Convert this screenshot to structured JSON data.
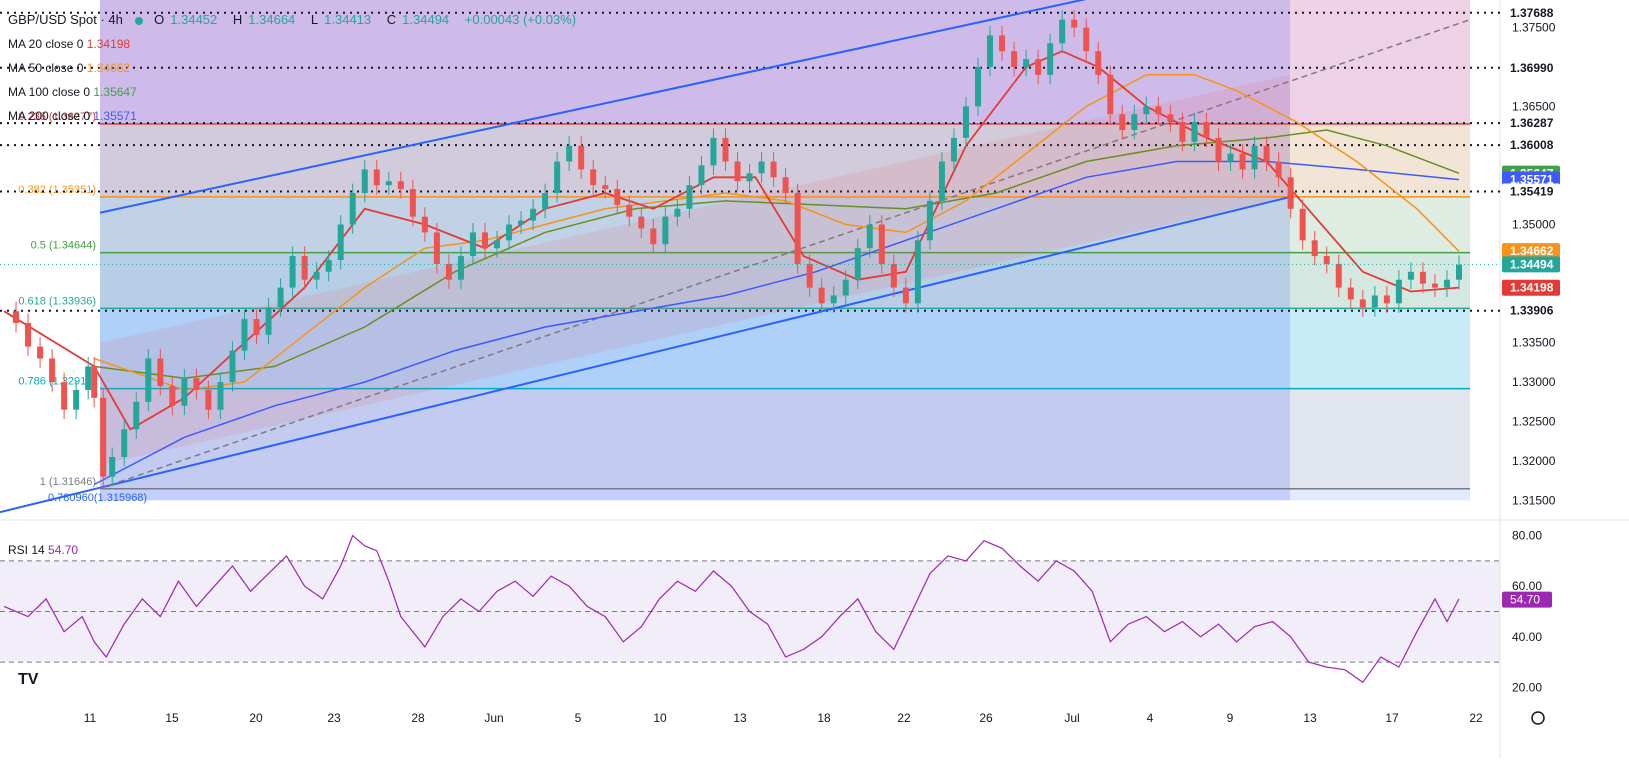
{
  "header": {
    "symbol": "GBP/USD Spot · 4h",
    "ohlc": [
      {
        "key": "O",
        "value": "1.34452"
      },
      {
        "key": "H",
        "value": "1.34664"
      },
      {
        "key": "L",
        "value": "1.34413"
      },
      {
        "key": "C",
        "value": "1.34494"
      }
    ],
    "change": "+0.00043 (+0.03%)"
  },
  "indicators": [
    {
      "label": "MA 20 close 0",
      "value": "1.34198",
      "color": "#e53935"
    },
    {
      "label": "MA 50 close 0",
      "value": "1.34662",
      "color": "#f7931a"
    },
    {
      "label": "MA 100 close 0",
      "value": "1.35647",
      "color": "#6b8e23"
    },
    {
      "label": "MA 200 close 0",
      "value": "1.35571",
      "color": "#3d5afe"
    }
  ],
  "rsi": {
    "label": "RSI 14",
    "value": "54.70",
    "color": "#9c27b0",
    "value_num": 54.7
  },
  "colors": {
    "up": "#26a69a",
    "down": "#ef5350",
    "ma20": "#e53935",
    "ma50": "#f7931a",
    "ma100": "#6b8e23",
    "ma200": "#3d5afe",
    "channel": "#2962ff",
    "rsi": "#9c27b0"
  },
  "chart_data": {
    "type": "line",
    "price_axis": {
      "ylim": [
        1.3125,
        1.3785
      ],
      "ticks": [
        "1.37500",
        "1.36500",
        "1.35000",
        "1.33500",
        "1.33000",
        "1.32500",
        "1.32000",
        "1.31500"
      ]
    },
    "time_axis": {
      "labels": [
        "11",
        "15",
        "20",
        "23",
        "28",
        "Jun",
        "5",
        "10",
        "13",
        "18",
        "22",
        "26",
        "Jul",
        "4",
        "9",
        "13",
        "17",
        "22"
      ]
    },
    "horizontal_levels": [
      "1.37688",
      "1.36990",
      "1.36287",
      "1.36008",
      "1.35419",
      "1.33906"
    ],
    "fibonacci": [
      {
        "label": "0.236 (1.36277)",
        "level": 1.36277
      },
      {
        "label": "0.382 (1.35351)",
        "level": 1.35351
      },
      {
        "label": "0.5 (1.34644)",
        "level": 1.34644
      },
      {
        "label": "0.618 (1.33936)",
        "level": 1.33936
      },
      {
        "label": "0.786 (1.32917)",
        "level": 1.32917
      },
      {
        "label": "1 (1.31646)",
        "level": 1.31646
      }
    ],
    "fib_extra_label": "0.780960(1.315968)",
    "price_badges": [
      {
        "value": "1.34662",
        "level": 1.34662,
        "color": "#f7931a"
      },
      {
        "value": "1.34494",
        "level": 1.34494,
        "color": "#26a69a"
      },
      {
        "value": "1.34198",
        "level": 1.34198,
        "color": "#e53935"
      },
      {
        "value": "1.33906",
        "level": 1.33906,
        "color": "#131722"
      },
      {
        "value": "1.35647",
        "level": 1.35647,
        "color": "#43a047"
      },
      {
        "value": "1.35571",
        "level": 1.35571,
        "color": "#3d5afe"
      },
      {
        "value": "1.35419",
        "level": 1.35419,
        "color": "#131722"
      },
      {
        "value": "1.36008",
        "level": 1.36008,
        "color": "#131722"
      },
      {
        "value": "1.36287",
        "level": 1.36287,
        "color": "#131722"
      },
      {
        "value": "1.36990",
        "level": 1.3699,
        "color": "#131722"
      },
      {
        "value": "1.37688",
        "level": 1.37688,
        "color": "#131722"
      }
    ],
    "price_path": [
      [
        0,
        1.339
      ],
      [
        4,
        1.3375
      ],
      [
        8,
        1.3345
      ],
      [
        12,
        1.333
      ],
      [
        16,
        1.33
      ],
      [
        20,
        1.3265
      ],
      [
        24,
        1.329
      ],
      [
        28,
        1.332
      ],
      [
        30,
        1.328
      ],
      [
        33,
        1.318
      ],
      [
        36,
        1.3205
      ],
      [
        40,
        1.324
      ],
      [
        44,
        1.3275
      ],
      [
        48,
        1.333
      ],
      [
        52,
        1.3295
      ],
      [
        56,
        1.327
      ],
      [
        60,
        1.3305
      ],
      [
        64,
        1.329
      ],
      [
        68,
        1.3265
      ],
      [
        72,
        1.33
      ],
      [
        76,
        1.334
      ],
      [
        80,
        1.338
      ],
      [
        84,
        1.336
      ],
      [
        88,
        1.3395
      ],
      [
        92,
        1.342
      ],
      [
        96,
        1.346
      ],
      [
        100,
        1.343
      ],
      [
        104,
        1.344
      ],
      [
        108,
        1.3455
      ],
      [
        112,
        1.35
      ],
      [
        116,
        1.354
      ],
      [
        120,
        1.357
      ],
      [
        124,
        1.355
      ],
      [
        128,
        1.3555
      ],
      [
        132,
        1.3545
      ],
      [
        136,
        1.351
      ],
      [
        140,
        1.349
      ],
      [
        144,
        1.345
      ],
      [
        148,
        1.343
      ],
      [
        152,
        1.346
      ],
      [
        156,
        1.349
      ],
      [
        160,
        1.347
      ],
      [
        164,
        1.348
      ],
      [
        168,
        1.35
      ],
      [
        172,
        1.3505
      ],
      [
        176,
        1.352
      ],
      [
        180,
        1.354
      ],
      [
        184,
        1.358
      ],
      [
        188,
        1.36
      ],
      [
        192,
        1.357
      ],
      [
        196,
        1.355
      ],
      [
        200,
        1.3545
      ],
      [
        204,
        1.3525
      ],
      [
        208,
        1.351
      ],
      [
        212,
        1.3495
      ],
      [
        216,
        1.3475
      ],
      [
        220,
        1.351
      ],
      [
        224,
        1.352
      ],
      [
        228,
        1.355
      ],
      [
        232,
        1.3575
      ],
      [
        236,
        1.361
      ],
      [
        240,
        1.358
      ],
      [
        244,
        1.3555
      ],
      [
        248,
        1.3565
      ],
      [
        252,
        1.358
      ],
      [
        256,
        1.356
      ],
      [
        260,
        1.354
      ],
      [
        264,
        1.345
      ],
      [
        268,
        1.342
      ],
      [
        272,
        1.34
      ],
      [
        276,
        1.341
      ],
      [
        280,
        1.343
      ],
      [
        284,
        1.347
      ],
      [
        288,
        1.35
      ],
      [
        292,
        1.345
      ],
      [
        296,
        1.342
      ],
      [
        300,
        1.34
      ],
      [
        304,
        1.348
      ],
      [
        308,
        1.353
      ],
      [
        312,
        1.358
      ],
      [
        316,
        1.361
      ],
      [
        320,
        1.365
      ],
      [
        324,
        1.37
      ],
      [
        328,
        1.374
      ],
      [
        332,
        1.372
      ],
      [
        336,
        1.37
      ],
      [
        340,
        1.371
      ],
      [
        344,
        1.369
      ],
      [
        348,
        1.373
      ],
      [
        352,
        1.376
      ],
      [
        356,
        1.375
      ],
      [
        360,
        1.372
      ],
      [
        364,
        1.369
      ],
      [
        368,
        1.364
      ],
      [
        372,
        1.362
      ],
      [
        376,
        1.364
      ],
      [
        380,
        1.365
      ],
      [
        384,
        1.364
      ],
      [
        388,
        1.363
      ],
      [
        392,
        1.3605
      ],
      [
        396,
        1.363
      ],
      [
        400,
        1.361
      ],
      [
        404,
        1.358
      ],
      [
        408,
        1.359
      ],
      [
        412,
        1.357
      ],
      [
        416,
        1.36
      ],
      [
        420,
        1.358
      ],
      [
        424,
        1.356
      ],
      [
        428,
        1.352
      ],
      [
        432,
        1.348
      ],
      [
        436,
        1.346
      ],
      [
        440,
        1.345
      ],
      [
        444,
        1.342
      ],
      [
        448,
        1.3405
      ],
      [
        452,
        1.3395
      ],
      [
        456,
        1.341
      ],
      [
        460,
        1.34
      ],
      [
        464,
        1.343
      ],
      [
        468,
        1.344
      ],
      [
        472,
        1.3425
      ],
      [
        476,
        1.342
      ],
      [
        480,
        1.343
      ],
      [
        484,
        1.3449
      ]
    ],
    "ma20": [
      [
        0,
        1.339
      ],
      [
        30,
        1.332
      ],
      [
        42,
        1.324
      ],
      [
        60,
        1.328
      ],
      [
        80,
        1.335
      ],
      [
        100,
        1.342
      ],
      [
        120,
        1.352
      ],
      [
        140,
        1.35
      ],
      [
        160,
        1.347
      ],
      [
        180,
        1.352
      ],
      [
        200,
        1.354
      ],
      [
        216,
        1.352
      ],
      [
        236,
        1.356
      ],
      [
        250,
        1.356
      ],
      [
        266,
        1.346
      ],
      [
        284,
        1.343
      ],
      [
        300,
        1.344
      ],
      [
        320,
        1.36
      ],
      [
        340,
        1.37
      ],
      [
        352,
        1.372
      ],
      [
        364,
        1.37
      ],
      [
        380,
        1.365
      ],
      [
        400,
        1.361
      ],
      [
        420,
        1.358
      ],
      [
        436,
        1.351
      ],
      [
        452,
        1.344
      ],
      [
        468,
        1.3415
      ],
      [
        484,
        1.342
      ]
    ],
    "ma50": [
      [
        30,
        1.333
      ],
      [
        60,
        1.329
      ],
      [
        80,
        1.33
      ],
      [
        100,
        1.336
      ],
      [
        120,
        1.342
      ],
      [
        140,
        1.347
      ],
      [
        160,
        1.348
      ],
      [
        180,
        1.35
      ],
      [
        200,
        1.352
      ],
      [
        220,
        1.353
      ],
      [
        240,
        1.354
      ],
      [
        260,
        1.353
      ],
      [
        280,
        1.35
      ],
      [
        300,
        1.349
      ],
      [
        320,
        1.353
      ],
      [
        340,
        1.359
      ],
      [
        360,
        1.365
      ],
      [
        380,
        1.369
      ],
      [
        396,
        1.369
      ],
      [
        410,
        1.367
      ],
      [
        430,
        1.363
      ],
      [
        450,
        1.358
      ],
      [
        470,
        1.352
      ],
      [
        484,
        1.3466
      ]
    ],
    "ma100": [
      [
        30,
        1.332
      ],
      [
        60,
        1.3305
      ],
      [
        90,
        1.332
      ],
      [
        120,
        1.337
      ],
      [
        150,
        1.344
      ],
      [
        180,
        1.349
      ],
      [
        210,
        1.352
      ],
      [
        240,
        1.353
      ],
      [
        270,
        1.3525
      ],
      [
        300,
        1.352
      ],
      [
        330,
        1.354
      ],
      [
        360,
        1.358
      ],
      [
        390,
        1.36
      ],
      [
        420,
        1.361
      ],
      [
        440,
        1.362
      ],
      [
        460,
        1.36
      ],
      [
        484,
        1.3565
      ]
    ],
    "ma200": [
      [
        30,
        1.317
      ],
      [
        60,
        1.323
      ],
      [
        90,
        1.327
      ],
      [
        120,
        1.33
      ],
      [
        150,
        1.334
      ],
      [
        180,
        1.337
      ],
      [
        210,
        1.339
      ],
      [
        240,
        1.341
      ],
      [
        270,
        1.344
      ],
      [
        300,
        1.348
      ],
      [
        330,
        1.352
      ],
      [
        360,
        1.356
      ],
      [
        390,
        1.358
      ],
      [
        420,
        1.358
      ],
      [
        450,
        1.357
      ],
      [
        484,
        1.3557
      ]
    ],
    "rsi_axis": {
      "ylim": [
        15,
        85
      ],
      "ticks": [
        "80.00",
        "60.00",
        "40.00",
        "20.00"
      ],
      "bands": [
        70,
        50,
        30
      ]
    },
    "rsi_path": [
      [
        0,
        52
      ],
      [
        8,
        48
      ],
      [
        14,
        55
      ],
      [
        20,
        42
      ],
      [
        26,
        48
      ],
      [
        30,
        38
      ],
      [
        34,
        32
      ],
      [
        40,
        45
      ],
      [
        46,
        55
      ],
      [
        52,
        48
      ],
      [
        58,
        62
      ],
      [
        64,
        52
      ],
      [
        70,
        60
      ],
      [
        76,
        68
      ],
      [
        82,
        58
      ],
      [
        88,
        65
      ],
      [
        94,
        72
      ],
      [
        100,
        60
      ],
      [
        106,
        55
      ],
      [
        112,
        68
      ],
      [
        116,
        80
      ],
      [
        120,
        76
      ],
      [
        124,
        74
      ],
      [
        128,
        62
      ],
      [
        132,
        48
      ],
      [
        136,
        42
      ],
      [
        140,
        36
      ],
      [
        146,
        48
      ],
      [
        152,
        55
      ],
      [
        158,
        50
      ],
      [
        164,
        58
      ],
      [
        170,
        62
      ],
      [
        176,
        56
      ],
      [
        182,
        64
      ],
      [
        188,
        60
      ],
      [
        194,
        52
      ],
      [
        200,
        48
      ],
      [
        206,
        38
      ],
      [
        212,
        44
      ],
      [
        218,
        55
      ],
      [
        224,
        62
      ],
      [
        230,
        58
      ],
      [
        236,
        66
      ],
      [
        242,
        60
      ],
      [
        248,
        50
      ],
      [
        254,
        45
      ],
      [
        260,
        32
      ],
      [
        266,
        35
      ],
      [
        272,
        40
      ],
      [
        278,
        48
      ],
      [
        284,
        55
      ],
      [
        290,
        42
      ],
      [
        296,
        35
      ],
      [
        302,
        50
      ],
      [
        308,
        65
      ],
      [
        314,
        72
      ],
      [
        320,
        70
      ],
      [
        326,
        78
      ],
      [
        332,
        75
      ],
      [
        338,
        68
      ],
      [
        344,
        62
      ],
      [
        350,
        70
      ],
      [
        356,
        66
      ],
      [
        362,
        58
      ],
      [
        368,
        38
      ],
      [
        374,
        45
      ],
      [
        380,
        48
      ],
      [
        386,
        42
      ],
      [
        392,
        46
      ],
      [
        398,
        40
      ],
      [
        404,
        45
      ],
      [
        410,
        38
      ],
      [
        416,
        44
      ],
      [
        422,
        46
      ],
      [
        428,
        40
      ],
      [
        434,
        30
      ],
      [
        440,
        28
      ],
      [
        446,
        27
      ],
      [
        452,
        22
      ],
      [
        458,
        32
      ],
      [
        464,
        28
      ],
      [
        470,
        42
      ],
      [
        476,
        55
      ],
      [
        480,
        46
      ],
      [
        484,
        55
      ]
    ]
  }
}
